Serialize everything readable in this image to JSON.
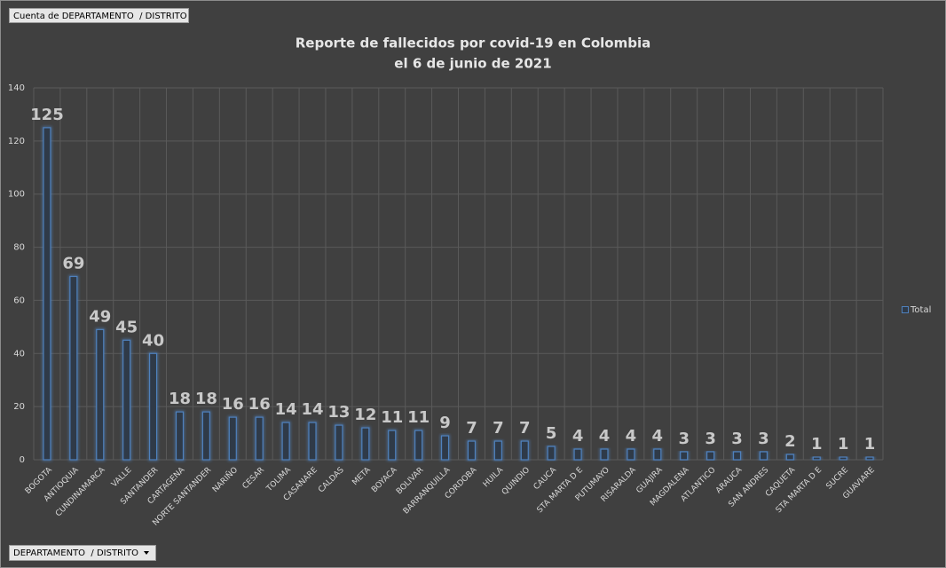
{
  "pivot_buttons": {
    "value_field": "Cuenta de DEPARTAMENTO  / DISTRITO",
    "axis_field": "DEPARTAMENTO  / DISTRITO"
  },
  "chart_data": {
    "type": "bar",
    "title": "Reporte de fallecidos por covid-19 en Colombia",
    "subtitle": "el 6 de junio de 2021",
    "categories": [
      "BOGOTA",
      "ANTIOQUIA",
      "CUNDINAMARCA",
      "VALLE",
      "SANTANDER",
      "CARTAGENA",
      "NORTE SANTANDER",
      "NARIÑO",
      "CESAR",
      "TOLIMA",
      "CASANARE",
      "CALDAS",
      "META",
      "BOYACA",
      "BOLIVAR",
      "BARRANQUILLA",
      "CORDOBA",
      "HUILA",
      "QUINDIO",
      "CAUCA",
      "STA MARTA D E",
      "PUTUMAYO",
      "RISARALDA",
      "GUAJIRA",
      "MAGDALENA",
      "ATLANTICO",
      "ARAUCA",
      "SAN ANDRES",
      "CAQUETA",
      "STA MARTA D E",
      "SUCRE",
      "GUAVIARE"
    ],
    "series": [
      {
        "name": "Total",
        "color": "#4f81bd",
        "values": [
          125,
          69,
          49,
          45,
          40,
          18,
          18,
          16,
          16,
          14,
          14,
          13,
          12,
          11,
          11,
          9,
          7,
          7,
          7,
          5,
          4,
          4,
          4,
          4,
          3,
          3,
          3,
          3,
          2,
          1,
          1,
          1
        ]
      }
    ],
    "ylim": [
      0,
      140
    ],
    "yticks": [
      0,
      20,
      40,
      60,
      80,
      100,
      120,
      140
    ],
    "grid": true,
    "legend": "right"
  }
}
